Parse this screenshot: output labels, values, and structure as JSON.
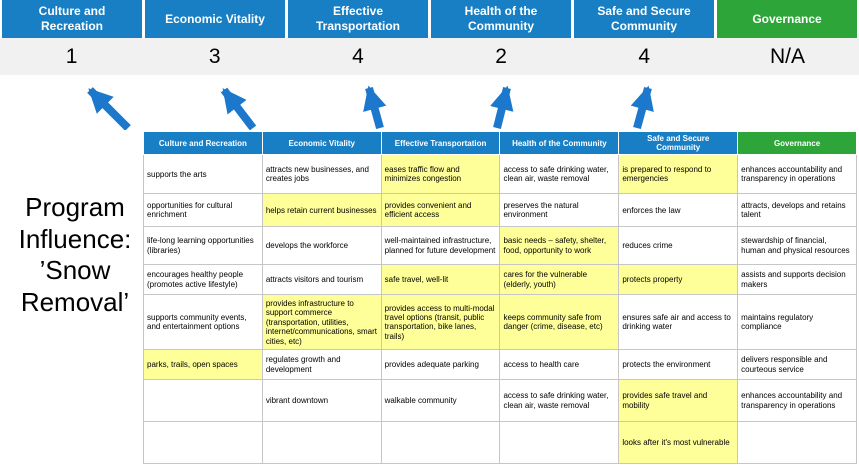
{
  "colors": {
    "blue": "#187fc4",
    "green": "#2ea538",
    "highlight": "#ffff99",
    "score_bg": "#f1f1f1",
    "arrow": "#1c78cc",
    "cell_border": "#c6c6c6"
  },
  "program_influence": {
    "text": "Program Influence: ’Snow Removal’"
  },
  "summary": {
    "columns": [
      {
        "label": "Culture and Recreation",
        "score": "1",
        "type": "blue"
      },
      {
        "label": "Economic Vitality",
        "score": "3",
        "type": "blue"
      },
      {
        "label": "Effective Transportation",
        "score": "4",
        "type": "blue"
      },
      {
        "label": "Health of the Community",
        "score": "2",
        "type": "blue"
      },
      {
        "label": "Safe and Secure Community",
        "score": "4",
        "type": "blue"
      },
      {
        "label": "Governance",
        "score": "N/A",
        "type": "green"
      }
    ]
  },
  "matrix": {
    "rows": [
      [
        {
          "text": "supports the arts",
          "highlight": false
        },
        {
          "text": "attracts new businesses, and creates jobs",
          "highlight": false
        },
        {
          "text": "eases traffic flow and minimizes congestion",
          "highlight": true
        },
        {
          "text": "access to safe drinking water, clean air, waste removal",
          "highlight": false
        },
        {
          "text": "is prepared to respond to emergencies",
          "highlight": true
        },
        {
          "text": "enhances accountability and transparency in operations",
          "highlight": false
        }
      ],
      [
        {
          "text": "opportunities for cultural enrichment",
          "highlight": false
        },
        {
          "text": "helps retain current businesses",
          "highlight": true
        },
        {
          "text": "provides convenient and efficient access",
          "highlight": true
        },
        {
          "text": "preserves the natural environment",
          "highlight": false
        },
        {
          "text": "enforces the law",
          "highlight": false
        },
        {
          "text": "attracts, develops and retains talent",
          "highlight": false
        }
      ],
      [
        {
          "text": "life-long learning opportunities (libraries)",
          "highlight": false
        },
        {
          "text": "develops the workforce",
          "highlight": false
        },
        {
          "text": "well-maintained infrastructure, planned for future development",
          "highlight": false
        },
        {
          "text": "basic needs – safety, shelter, food, opportunity to work",
          "highlight": true
        },
        {
          "text": "reduces crime",
          "highlight": false
        },
        {
          "text": "stewardship of financial, human and physical resources",
          "highlight": false
        }
      ],
      [
        {
          "text": "encourages healthy people (promotes active lifestyle)",
          "highlight": false
        },
        {
          "text": "attracts visitors and tourism",
          "highlight": false
        },
        {
          "text": "safe travel, well-lit",
          "highlight": true
        },
        {
          "text": "cares for the vulnerable (elderly, youth)",
          "highlight": true
        },
        {
          "text": "protects property",
          "highlight": true
        },
        {
          "text": "assists and supports decision makers",
          "highlight": false
        }
      ],
      [
        {
          "text": "supports community events, and entertainment options",
          "highlight": false
        },
        {
          "text": "provides infrastructure to support commerce (transportation, utilities, internet/communications, smart cities, etc)",
          "highlight": true
        },
        {
          "text": "provides access to multi-modal travel options (transit, public transportation, bike lanes, trails)",
          "highlight": true
        },
        {
          "text": "keeps community safe from danger (crime, disease, etc)",
          "highlight": true
        },
        {
          "text": "ensures safe air and access to drinking water",
          "highlight": false
        },
        {
          "text": "maintains regulatory compliance",
          "highlight": false
        }
      ],
      [
        {
          "text": "parks, trails, open spaces",
          "highlight": true
        },
        {
          "text": "regulates growth and development",
          "highlight": false
        },
        {
          "text": "provides adequate parking",
          "highlight": false
        },
        {
          "text": "access to health care",
          "highlight": false
        },
        {
          "text": "protects the environment",
          "highlight": false
        },
        {
          "text": "delivers responsible and courteous service",
          "highlight": false
        }
      ],
      [
        {
          "text": "",
          "highlight": false
        },
        {
          "text": "vibrant downtown",
          "highlight": false
        },
        {
          "text": "walkable community",
          "highlight": false
        },
        {
          "text": "access to safe drinking water, clean air, waste removal",
          "highlight": false
        },
        {
          "text": "provides safe travel and mobility",
          "highlight": true
        },
        {
          "text": "enhances accountability and transparency in operations",
          "highlight": false
        }
      ],
      [
        {
          "text": "",
          "highlight": false
        },
        {
          "text": "",
          "highlight": false
        },
        {
          "text": "",
          "highlight": false
        },
        {
          "text": "",
          "highlight": false
        },
        {
          "text": "looks after it's most vulnerable",
          "highlight": true
        },
        {
          "text": "",
          "highlight": false
        }
      ]
    ]
  }
}
